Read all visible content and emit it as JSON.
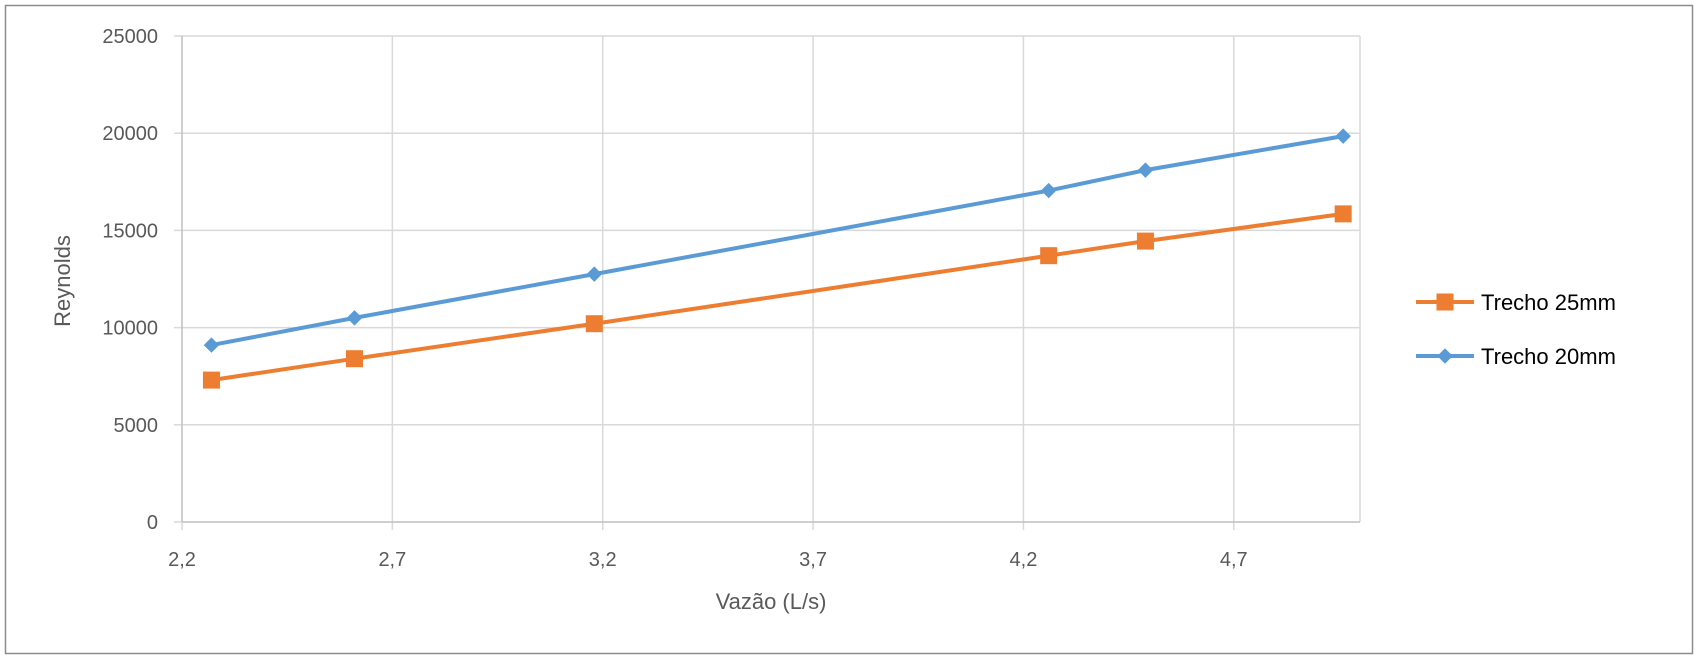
{
  "colors": {
    "series_orange": "#ED7D31",
    "series_blue": "#5B9BD5",
    "grid": "#D9D9D9",
    "text": "#595959"
  },
  "chart_data": {
    "type": "line",
    "title": "",
    "xlabel": "Vazão (L/s)",
    "ylabel": "Reynolds",
    "xlim": [
      2.2,
      5.0
    ],
    "ylim": [
      0,
      25000
    ],
    "x_ticks": [
      2.2,
      2.7,
      3.2,
      3.7,
      4.2,
      4.7
    ],
    "x_tick_labels": [
      "2,2",
      "2,7",
      "3,2",
      "3,7",
      "4,2",
      "4,7"
    ],
    "y_ticks": [
      0,
      5000,
      10000,
      15000,
      20000,
      25000
    ],
    "y_tick_labels": [
      "0",
      "5000",
      "10000",
      "15000",
      "20000",
      "25000"
    ],
    "grid": true,
    "legend_position": "right",
    "series": [
      {
        "name": "Trecho 25mm",
        "color": "#ED7D31",
        "marker": "square",
        "x": [
          2.27,
          2.61,
          3.18,
          4.26,
          4.49,
          4.96
        ],
        "y": [
          7300,
          8400,
          10200,
          13700,
          14450,
          15850
        ]
      },
      {
        "name": "Trecho 20mm",
        "color": "#5B9BD5",
        "marker": "diamond",
        "x": [
          2.27,
          2.61,
          3.18,
          4.26,
          4.49,
          4.96
        ],
        "y": [
          9100,
          10500,
          12750,
          17050,
          18100,
          19850
        ]
      }
    ]
  }
}
